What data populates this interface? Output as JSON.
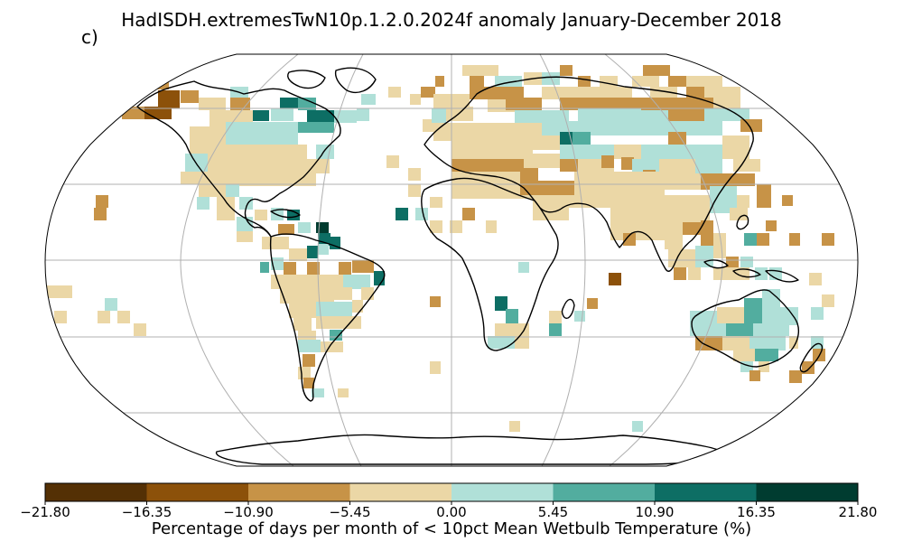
{
  "title": "HadISDH.extremesTwN10p.1.2.0.2024f anomaly January-December 2018",
  "panel_label": "c)",
  "colorbar": {
    "label": "Percentage of days per month of < 10pct Mean Wetbulb Temperature (%)",
    "ticks": [
      "−21.80",
      "−16.35",
      "−10.90",
      "−5.45",
      "0.00",
      "5.45",
      "10.90",
      "16.35",
      "21.80"
    ],
    "colors": [
      "#543005",
      "#8c510a",
      "#c79347",
      "#ebd7a6",
      "#b0e0d8",
      "#52ad9f",
      "#0d6e64",
      "#003c30"
    ]
  },
  "map": {
    "projection": "Robinson",
    "gridlines": true,
    "coastlines": true
  }
}
